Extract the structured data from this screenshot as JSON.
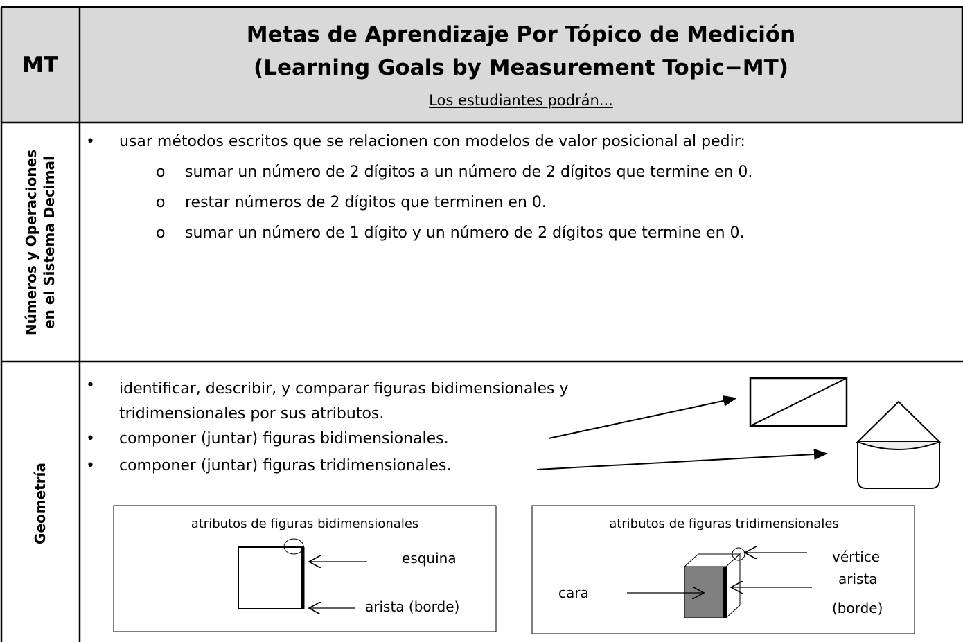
{
  "header": {
    "col1": "MT",
    "title_line1": "Metas de Aprendizaje Por Tópico de Medición",
    "title_line2": "(Learning Goals by Measurement Topic−MT)",
    "subtitle": "Los estudiantes podrán..."
  },
  "rows": [
    {
      "topic": [
        "Números y Operaciones",
        "en el Sistema Decimal"
      ],
      "bullets": [
        "usar métodos escritos que se relacionen con modelos de valor posicional al pedir:"
      ],
      "sub_items": [
        "sumar un número de 2 dígitos a un número de 2 dígitos que termine en 0.",
        "restar números de 2 dígitos que terminen en 0.",
        "sumar un número de 1 dígito y un número de 2 dígitos que termine en 0."
      ]
    },
    {
      "topic": [
        "Geometría"
      ],
      "bullets": [
        "identificar, describir, y comparar figuras bidimensionales y tridimensionales por sus atributos.",
        "componer (juntar) figuras bidimensionales.",
        "componer (juntar) figuras tridimensionales."
      ],
      "boxes": [
        {
          "title": "atributos de figuras bidimensionales",
          "labels": [
            "esquina",
            "arista (borde)"
          ]
        },
        {
          "title": "atributos de figuras tridimensionales",
          "labels": [
            "vértice",
            "arista",
            "(borde)",
            "cara"
          ]
        }
      ]
    }
  ]
}
